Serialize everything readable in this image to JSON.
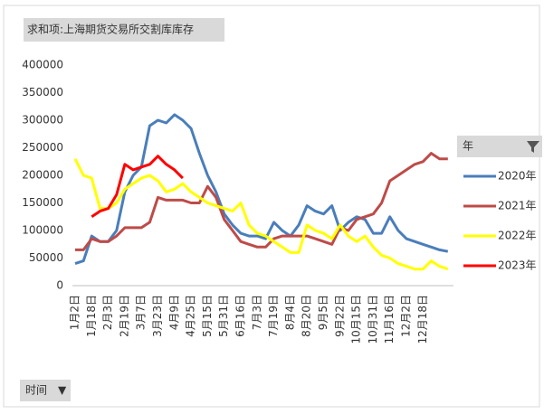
{
  "chart_data": {
    "type": "line",
    "title": "求和项:上海期货交易所交割库库存",
    "x_axis_button": "时间",
    "legend_title": "年",
    "legend": "right",
    "grid": false,
    "categories": [
      "1月2日",
      null,
      "1月18日",
      null,
      "2月3日",
      null,
      "2月19日",
      null,
      "3月7日",
      null,
      "3月23日",
      null,
      "4月9日",
      null,
      "4月25日",
      null,
      "5月15日",
      null,
      "5月31日",
      null,
      "6月16日",
      null,
      "7月3日",
      null,
      "7月19日",
      null,
      "8月4日",
      null,
      "8月20日",
      null,
      "9月5日",
      null,
      "9月22日",
      null,
      "10月15日",
      null,
      "10月31日",
      null,
      "11月16日",
      null,
      "12月2日",
      null,
      "12月18日",
      null,
      null,
      null
    ],
    "ylim": [
      0,
      400000
    ],
    "yticks": [
      0,
      50000,
      100000,
      150000,
      200000,
      250000,
      300000,
      350000,
      400000
    ],
    "series": [
      {
        "name": "2020年",
        "color": "#4a7ebb",
        "values": [
          40000,
          45000,
          90000,
          80000,
          80000,
          100000,
          170000,
          200000,
          215000,
          290000,
          300000,
          295000,
          310000,
          300000,
          285000,
          240000,
          200000,
          170000,
          130000,
          110000,
          95000,
          90000,
          90000,
          85000,
          115000,
          100000,
          90000,
          110000,
          145000,
          135000,
          130000,
          145000,
          100000,
          115000,
          125000,
          120000,
          95000,
          95000,
          125000,
          100000,
          85000,
          80000,
          75000,
          70000,
          65000,
          62000
        ]
      },
      {
        "name": "2021年",
        "color": "#be4b48",
        "values": [
          65000,
          65000,
          85000,
          80000,
          80000,
          90000,
          105000,
          105000,
          105000,
          115000,
          160000,
          155000,
          155000,
          155000,
          150000,
          150000,
          180000,
          160000,
          120000,
          100000,
          80000,
          75000,
          70000,
          70000,
          85000,
          90000,
          90000,
          90000,
          90000,
          85000,
          80000,
          75000,
          105000,
          100000,
          120000,
          125000,
          130000,
          150000,
          190000,
          200000,
          210000,
          220000,
          225000,
          240000,
          230000,
          230000
        ]
      },
      {
        "name": "2022年",
        "color": "#ffff00",
        "values": [
          230000,
          200000,
          195000,
          140000,
          140000,
          150000,
          175000,
          185000,
          195000,
          200000,
          190000,
          170000,
          175000,
          185000,
          170000,
          160000,
          150000,
          145000,
          140000,
          135000,
          150000,
          110000,
          95000,
          90000,
          80000,
          70000,
          60000,
          60000,
          110000,
          100000,
          95000,
          85000,
          110000,
          90000,
          80000,
          90000,
          70000,
          55000,
          50000,
          40000,
          35000,
          30000,
          30000,
          45000,
          35000,
          30000
        ]
      },
      {
        "name": "2023年",
        "color": "#ff0000",
        "values": [
          null,
          null,
          125000,
          135000,
          140000,
          165000,
          220000,
          210000,
          215000,
          220000,
          235000,
          220000,
          210000,
          195000,
          null,
          null,
          null,
          null,
          null,
          null,
          null,
          null,
          null,
          null,
          null,
          null,
          null,
          null,
          null,
          null,
          null,
          null,
          null,
          null,
          null,
          null,
          null,
          null,
          null,
          null,
          null,
          null,
          null,
          null,
          null,
          null
        ]
      }
    ]
  }
}
